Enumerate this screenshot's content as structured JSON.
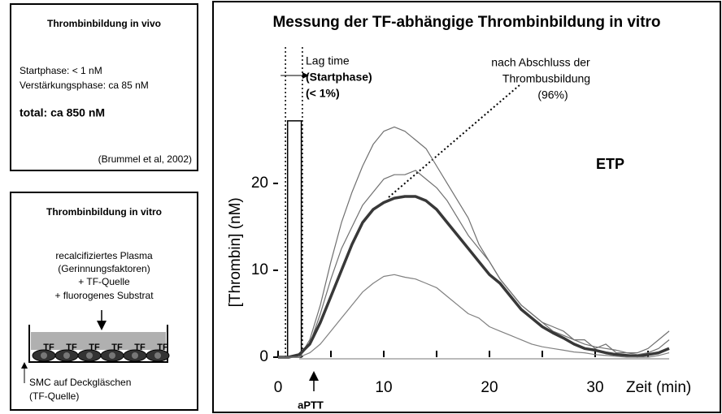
{
  "panels": [
    {
      "title": "Thrombinbildung in vivo",
      "lines": [
        "Startphase: < 1 nM",
        "Verstärkungsphase: ca 85 nM"
      ],
      "total": "total: ca 850 nM",
      "source": "(Brummel et al, 2002)"
    },
    {
      "title": "Thrombinbildung in vitro",
      "lines": [
        "recalcifiziertes Plasma",
        "(Gerinnungsfaktoren)",
        "+ TF-Quelle",
        "+ fluorogenes Substrat"
      ],
      "cell_labels": [
        "TF",
        "TF",
        "TF",
        "TF",
        "TF",
        "TF"
      ],
      "caption": [
        "SMC auf Deckgläschen",
        "(TF-Quelle)"
      ]
    }
  ],
  "chart_data": {
    "type": "line",
    "title": "Messung der TF-abhängige Thrombinbildung in vitro",
    "x_label": "Zeit (min)",
    "y_label": "[Thrombin] (nM)",
    "lag_label": [
      "Lag time",
      "(Startphase)",
      "(< 1%)"
    ],
    "end_label": [
      "nach Abschluss der",
      "Thrombusbildung",
      "(96%)"
    ],
    "area_label": "ETP",
    "marker_label": "aPTT",
    "x": [
      0,
      1,
      2,
      3,
      4,
      5,
      6,
      7,
      8,
      9,
      10,
      11,
      12,
      13,
      14,
      15,
      16,
      17,
      18,
      19,
      20,
      21,
      22,
      23,
      24,
      25,
      26,
      27,
      28,
      29,
      30,
      31,
      32,
      33,
      34,
      35,
      36,
      37
    ],
    "series": [
      {
        "color": "#707070",
        "width": 1.2,
        "values": [
          0,
          0,
          0,
          2,
          6,
          11,
          15.5,
          19,
          22,
          24.5,
          26,
          26.5,
          26,
          25,
          24,
          22,
          20,
          18,
          16,
          13,
          11,
          9,
          7.5,
          6,
          5,
          4,
          3,
          2.5,
          2,
          1.5,
          1.2,
          1,
          0.8,
          0.5,
          0.5,
          1,
          2,
          3
        ]
      },
      {
        "color": "#707070",
        "width": 1.2,
        "values": [
          0,
          0,
          0,
          1.5,
          5,
          9,
          12.5,
          15,
          17.5,
          19,
          20.5,
          21,
          21,
          21.5,
          20.5,
          19.5,
          18,
          16,
          14,
          12.5,
          11,
          9,
          7.5,
          6,
          5,
          4,
          3.5,
          3,
          2,
          2,
          1,
          1.5,
          0.5,
          0.5,
          0.3,
          0.5,
          1,
          2
        ]
      },
      {
        "color": "#383838",
        "width": 3.5,
        "values": [
          0,
          0,
          0.3,
          1.5,
          4,
          7,
          10,
          13,
          15.5,
          17,
          17.8,
          18.3,
          18.5,
          18.5,
          18,
          17,
          15.5,
          14,
          12.5,
          11,
          9.5,
          8.5,
          7,
          5.5,
          4.5,
          3.5,
          2.8,
          2.2,
          1.5,
          1,
          0.8,
          0.5,
          0.3,
          0.2,
          0.1,
          0.3,
          0.5,
          1
        ]
      },
      {
        "color": "#808080",
        "width": 1.2,
        "values": [
          0,
          0,
          0,
          0.5,
          1.5,
          3,
          4.5,
          6,
          7.5,
          8.5,
          9.3,
          9.5,
          9.2,
          9,
          8.5,
          8,
          7,
          6,
          5,
          4.5,
          3.5,
          3,
          2.5,
          2,
          1.5,
          1.2,
          1,
          0.8,
          0.6,
          0.5,
          0.3,
          0.2,
          0.1,
          0,
          0,
          0,
          0.2,
          0.5
        ]
      }
    ],
    "xlim": [
      -1.5,
      37.5
    ],
    "ylim": [
      -1,
      27
    ],
    "xticks": [
      0,
      10,
      20,
      30
    ],
    "xminorticks": [
      5,
      15,
      25,
      35
    ],
    "yticks": [
      0,
      10,
      20
    ],
    "grid": false
  }
}
